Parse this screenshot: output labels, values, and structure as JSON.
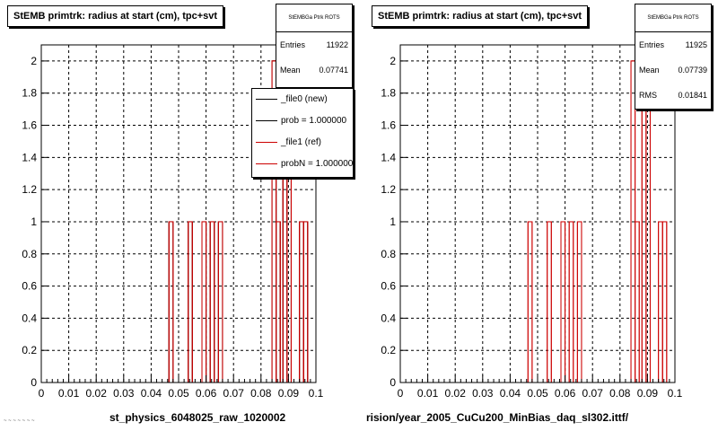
{
  "chart_data": [
    {
      "type": "bar",
      "title": "StEMB primtrk: radius at start (cm), tpc+svt",
      "xlim": [
        0,
        0.1
      ],
      "ylim": [
        0,
        2.1
      ],
      "x_ticks": [
        "0",
        "0.01",
        "0.02",
        "0.03",
        "0.04",
        "0.05",
        "0.06",
        "0.07",
        "0.08",
        "0.09",
        "0.1"
      ],
      "y_ticks": [
        "0",
        "0.2",
        "0.4",
        "0.6",
        "0.8",
        "1",
        "1.2",
        "1.4",
        "1.6",
        "1.8",
        "2"
      ],
      "grid": true,
      "series": [
        {
          "name": "_file0 (new)",
          "color": "#000000",
          "bins": [
            {
              "x0": 0.0465,
              "x1": 0.048,
              "y": 1
            },
            {
              "x0": 0.0535,
              "x1": 0.055,
              "y": 1
            },
            {
              "x0": 0.0585,
              "x1": 0.06,
              "y": 1
            },
            {
              "x0": 0.0615,
              "x1": 0.063,
              "y": 1
            },
            {
              "x0": 0.0645,
              "x1": 0.066,
              "y": 1
            },
            {
              "x0": 0.084,
              "x1": 0.0855,
              "y": 2
            },
            {
              "x0": 0.0855,
              "x1": 0.087,
              "y": 1
            },
            {
              "x0": 0.088,
              "x1": 0.0895,
              "y": 2
            },
            {
              "x0": 0.0895,
              "x1": 0.091,
              "y": 2
            },
            {
              "x0": 0.094,
              "x1": 0.0955,
              "y": 1
            },
            {
              "x0": 0.0955,
              "x1": 0.097,
              "y": 1
            }
          ]
        },
        {
          "name": "_file1 (ref)",
          "color": "#cc0000",
          "bins": [
            {
              "x0": 0.0465,
              "x1": 0.048,
              "y": 1
            },
            {
              "x0": 0.0535,
              "x1": 0.055,
              "y": 1
            },
            {
              "x0": 0.0585,
              "x1": 0.06,
              "y": 1
            },
            {
              "x0": 0.0615,
              "x1": 0.063,
              "y": 1
            },
            {
              "x0": 0.0645,
              "x1": 0.066,
              "y": 1
            },
            {
              "x0": 0.084,
              "x1": 0.0855,
              "y": 2
            },
            {
              "x0": 0.0855,
              "x1": 0.087,
              "y": 1
            },
            {
              "x0": 0.088,
              "x1": 0.0895,
              "y": 2
            },
            {
              "x0": 0.0895,
              "x1": 0.091,
              "y": 2
            },
            {
              "x0": 0.094,
              "x1": 0.0955,
              "y": 1
            },
            {
              "x0": 0.0955,
              "x1": 0.097,
              "y": 1
            }
          ]
        }
      ],
      "stats": {
        "name": "StEMBGa Ptrk ROTS",
        "entries_label": "Entries",
        "entries": "11922",
        "mean_label": "Mean",
        "mean": "0.07741"
      },
      "legend": [
        {
          "label": "_file0 (new)",
          "color": "#000000"
        },
        {
          "label": "prob = 1.000000",
          "color": "#000000"
        },
        {
          "label": "_file1 (ref)",
          "color": "#cc0000"
        },
        {
          "label": "probN = 1.000000",
          "color": "#cc0000"
        }
      ],
      "file_label": "st_physics_6048025_raw_1020002"
    },
    {
      "type": "bar",
      "title": "StEMB primtrk: radius at start (cm), tpc+svt",
      "xlim": [
        0,
        0.1
      ],
      "ylim": [
        0,
        2.1
      ],
      "x_ticks": [
        "0",
        "0.01",
        "0.02",
        "0.03",
        "0.04",
        "0.05",
        "0.06",
        "0.07",
        "0.08",
        "0.09",
        "0.1"
      ],
      "y_ticks": [
        "0",
        "0.2",
        "0.4",
        "0.6",
        "0.8",
        "1",
        "1.2",
        "1.4",
        "1.6",
        "1.8",
        "2"
      ],
      "grid": true,
      "series": [
        {
          "name": "_file1 (ref)",
          "color": "#cc0000",
          "bins": [
            {
              "x0": 0.0465,
              "x1": 0.048,
              "y": 1
            },
            {
              "x0": 0.0535,
              "x1": 0.055,
              "y": 1
            },
            {
              "x0": 0.0585,
              "x1": 0.06,
              "y": 1
            },
            {
              "x0": 0.0615,
              "x1": 0.063,
              "y": 1
            },
            {
              "x0": 0.0645,
              "x1": 0.066,
              "y": 1
            },
            {
              "x0": 0.084,
              "x1": 0.0855,
              "y": 2
            },
            {
              "x0": 0.0855,
              "x1": 0.087,
              "y": 1
            },
            {
              "x0": 0.088,
              "x1": 0.0895,
              "y": 2
            },
            {
              "x0": 0.0895,
              "x1": 0.091,
              "y": 2
            },
            {
              "x0": 0.094,
              "x1": 0.0955,
              "y": 1
            },
            {
              "x0": 0.0955,
              "x1": 0.097,
              "y": 1
            }
          ]
        }
      ],
      "stats": {
        "name": "StEMBGa Ptrk ROTS",
        "entries_label": "Entries",
        "entries": "11925",
        "mean_label": "Mean",
        "mean": "0.07739",
        "rms_label": "RMS",
        "rms": "0.01841"
      },
      "file_label": "rision/year_2005_CuCu200_MinBias_daq_sl302.ittf/"
    }
  ],
  "footer_note": "~ ~ ~ ~ ~ ~ ~"
}
